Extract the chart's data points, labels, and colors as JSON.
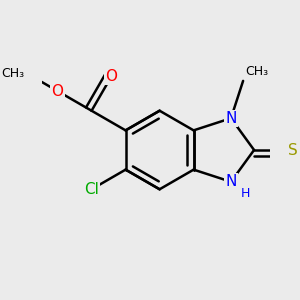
{
  "background_color": "#ebebeb",
  "bond_color": "#000000",
  "bond_width": 1.8,
  "atom_colors": {
    "N": "#0000ff",
    "O": "#ff0000",
    "S": "#999900",
    "Cl": "#00aa00",
    "C": "#000000",
    "H": "#0000ff"
  },
  "font_size_atom": 11,
  "font_size_sub": 9,
  "fig_width": 3.0,
  "fig_height": 3.0,
  "dpi": 100
}
